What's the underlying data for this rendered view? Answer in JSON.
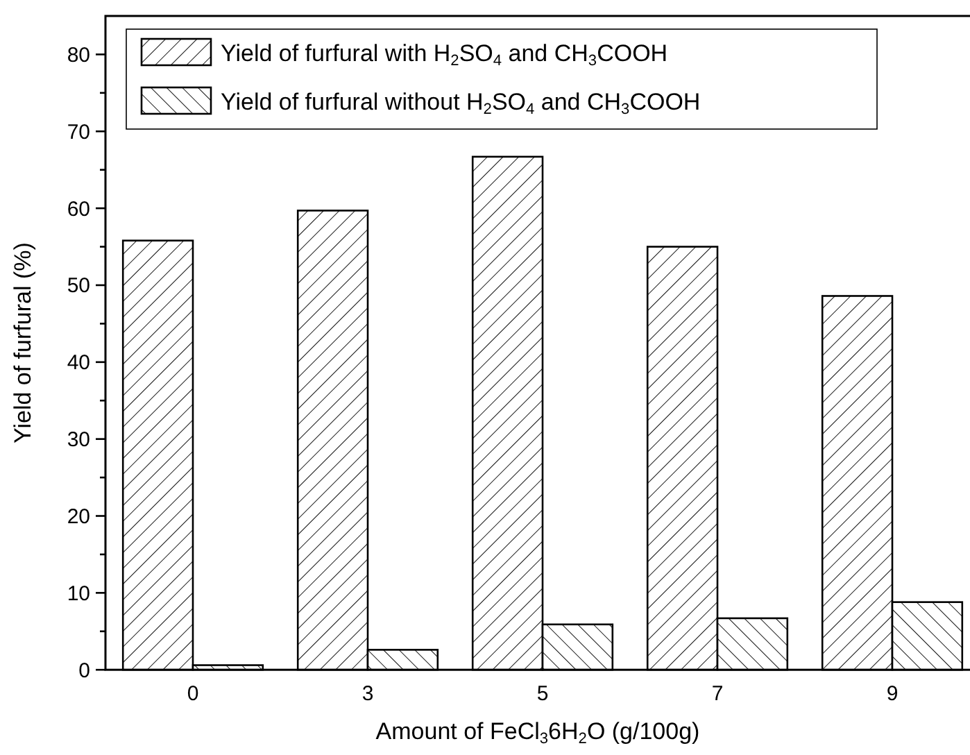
{
  "chart_data": {
    "type": "bar",
    "xlabel": "Amount of FeCl$_{3}$6H$_{2}$O (g/100g)",
    "ylabel": "Yield of furfural (%)",
    "categories": [
      "0",
      "3",
      "5",
      "7",
      "9"
    ],
    "series": [
      {
        "name": "Yield of furfural with H$_{2}$SO$_{4}$ and CH$_{3}$COOH",
        "color": "#000000",
        "values": [
          55.8,
          59.7,
          66.7,
          55.0,
          48.6
        ]
      },
      {
        "name": "Yield of furfural without H$_{2}$SO$_{4}$ and CH$_{3}$COOH",
        "color": "#000000",
        "values": [
          0.6,
          2.6,
          5.9,
          6.7,
          8.8
        ]
      }
    ],
    "ylim": [
      0,
      85
    ],
    "yticks": [
      0,
      {
        "value": 5,
        "label": null
      },
      10,
      {
        "value": 15,
        "label": null
      },
      20,
      {
        "value": 25,
        "label": null
      },
      30,
      {
        "value": 35,
        "label": null
      },
      40,
      {
        "value": 45,
        "label": null
      },
      50,
      {
        "value": 55,
        "label": null
      },
      60,
      {
        "value": 65,
        "label": null
      },
      70,
      {
        "value": 75,
        "label": null
      },
      80
    ],
    "grid": false,
    "legend": "top left"
  }
}
